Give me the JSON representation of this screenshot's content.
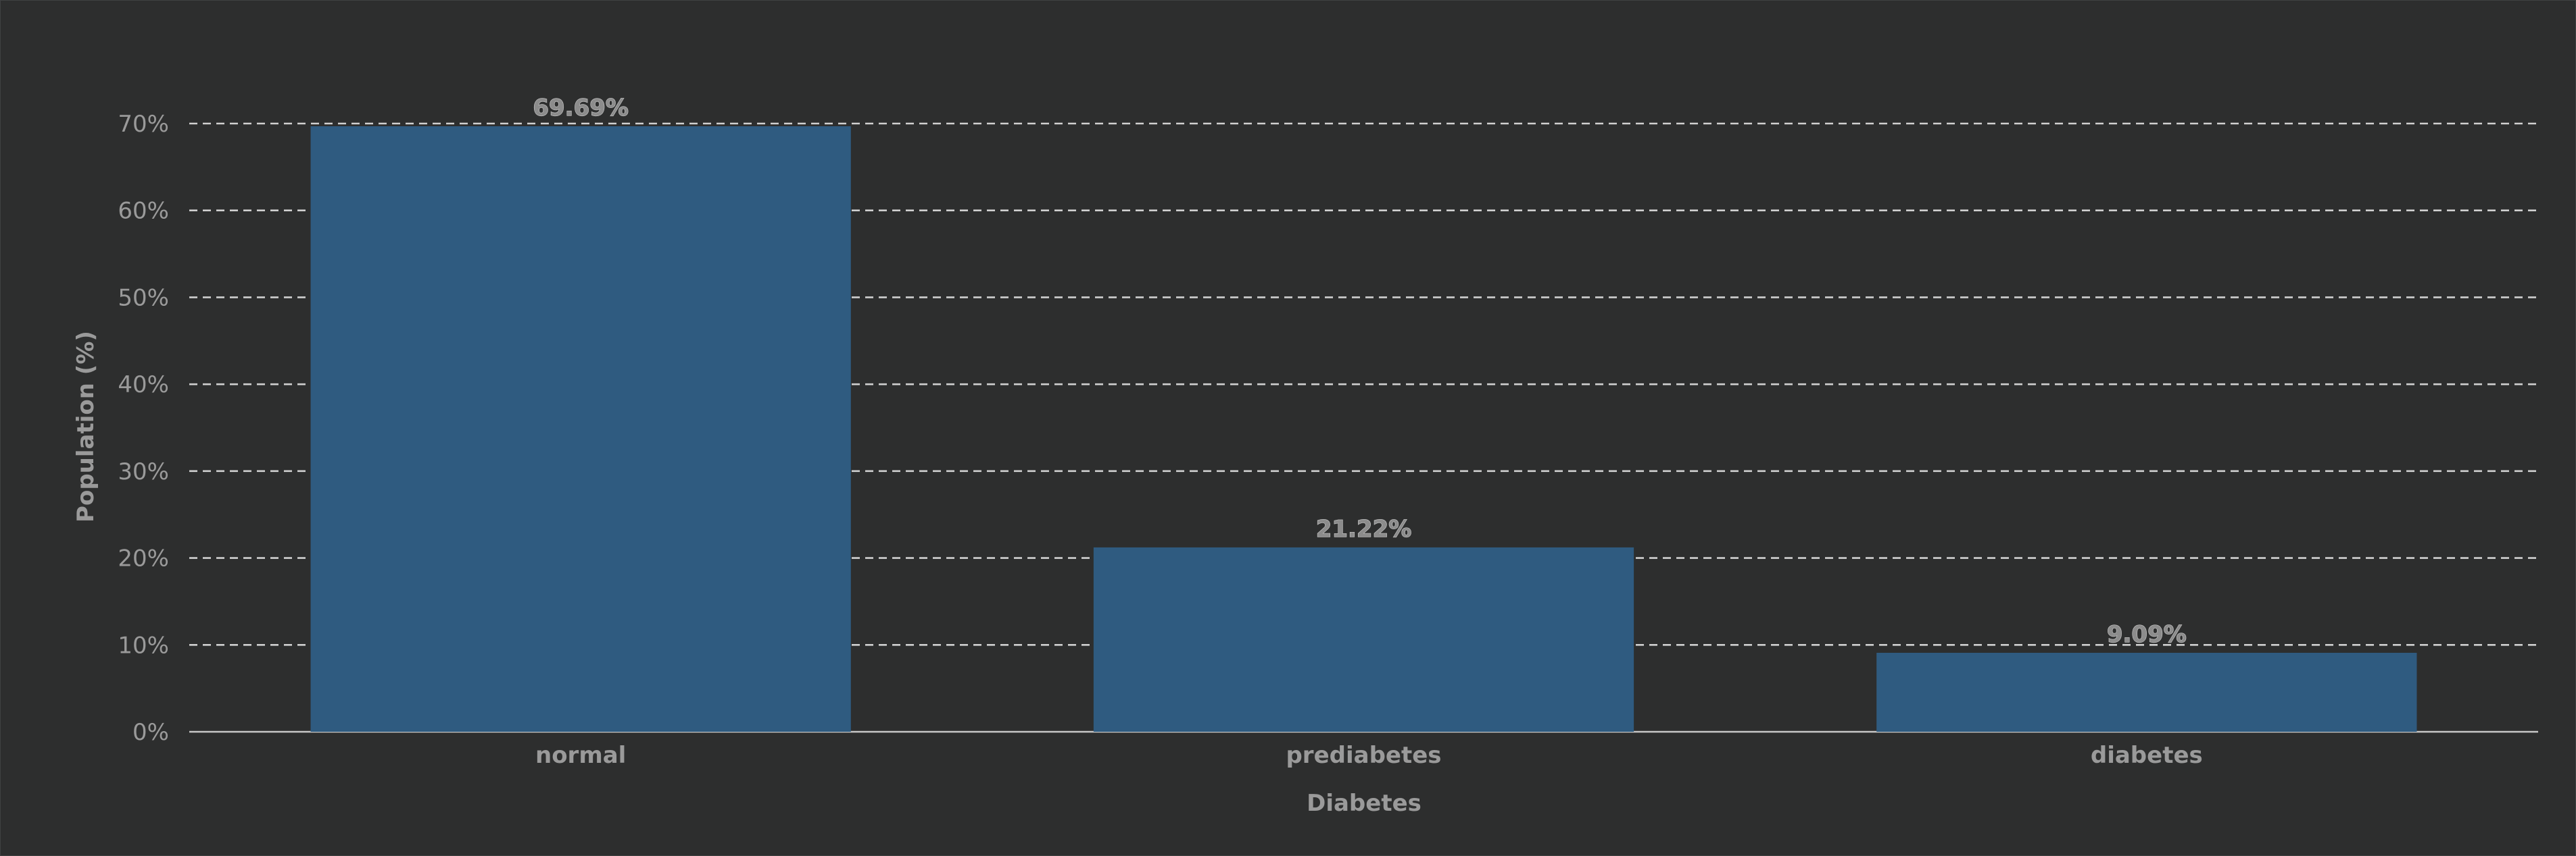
{
  "chart_data": {
    "type": "bar",
    "categories": [
      "normal",
      "prediabetes",
      "diabetes"
    ],
    "values": [
      69.69,
      21.22,
      9.09
    ],
    "value_labels": [
      "69.69%",
      "21.22%",
      "9.09%"
    ],
    "title": "",
    "xlabel": "Diabetes",
    "ylabel": "Population (%)",
    "ylim": [
      0,
      70
    ],
    "yticks": [
      0,
      10,
      20,
      30,
      40,
      50,
      60,
      70
    ],
    "ytick_labels": [
      "0%",
      "10%",
      "20%",
      "30%",
      "40%",
      "50%",
      "60%",
      "70%"
    ],
    "grid": true,
    "colors": {
      "background": "#2d2e2e",
      "bar": "#2f5b80",
      "text": "#9a9a9a"
    }
  }
}
